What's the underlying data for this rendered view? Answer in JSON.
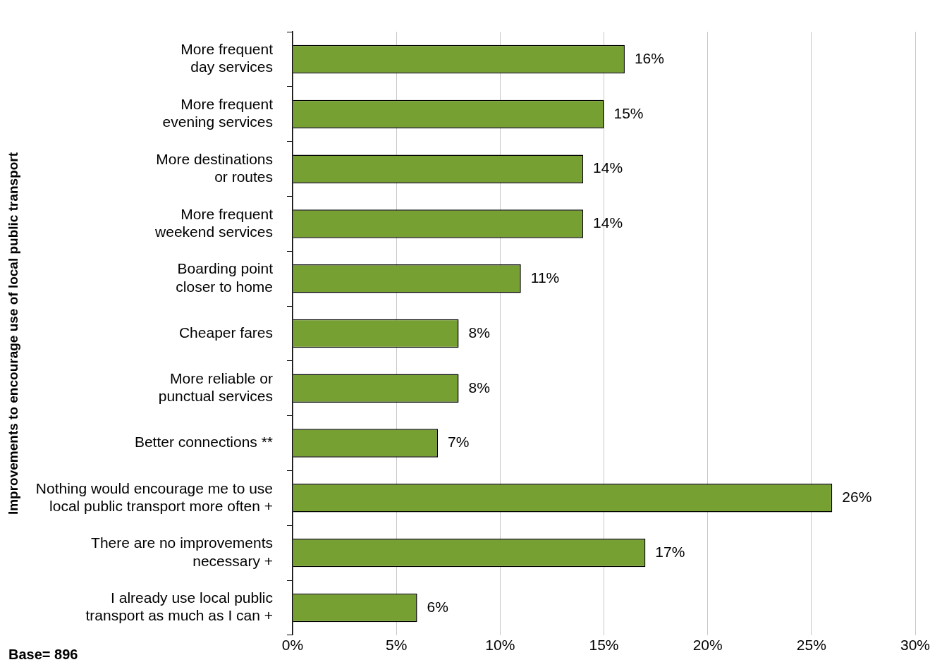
{
  "chart_data": {
    "type": "bar",
    "orientation": "horizontal",
    "ylabel": "Improvements to encourage use of local public transport",
    "categories": [
      "More frequent\nday services",
      "More frequent\nevening services",
      "More destinations\nor routes",
      "More frequent\nweekend services",
      "Boarding point\ncloser to home",
      "Cheaper fares",
      "More reliable or\npunctual services",
      "Better connections **",
      "Nothing would encourage me to use\nlocal public transport more often +",
      "There are no improvements\nnecessary +",
      "I already use local public\ntransport as much as I can +"
    ],
    "values": [
      16,
      15,
      14,
      14,
      11,
      8,
      8,
      7,
      26,
      17,
      6
    ],
    "value_labels": [
      "16%",
      "15%",
      "14%",
      "14%",
      "11%",
      "8%",
      "8%",
      "7%",
      "26%",
      "17%",
      "6%"
    ],
    "color": "#77a033",
    "xlim": [
      0,
      30
    ],
    "xticks": [
      {
        "value": 0,
        "label": "0%"
      },
      {
        "value": 5,
        "label": "5%"
      },
      {
        "value": 10,
        "label": "10%"
      },
      {
        "value": 15,
        "label": "15%"
      },
      {
        "value": 20,
        "label": "20%"
      },
      {
        "value": 25,
        "label": "25%"
      },
      {
        "value": 30,
        "label": "30%"
      }
    ],
    "grid": "x",
    "legend": false,
    "annotations": [
      "Base= 896"
    ]
  }
}
